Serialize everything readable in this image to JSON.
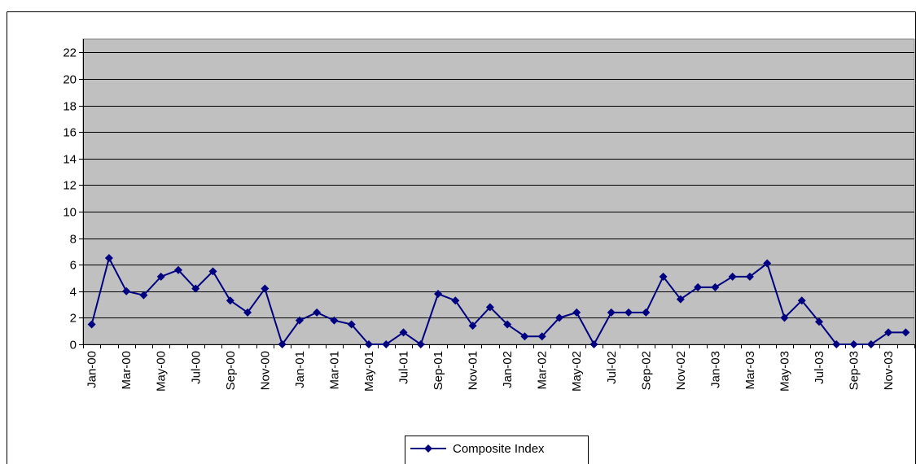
{
  "chart_data": {
    "type": "line",
    "categories": [
      "Jan-00",
      null,
      "Mar-00",
      null,
      "May-00",
      null,
      "Jul-00",
      null,
      "Sep-00",
      null,
      "Nov-00",
      null,
      "Jan-01",
      null,
      "Mar-01",
      null,
      "May-01",
      null,
      "Jul-01",
      null,
      "Sep-01",
      null,
      "Nov-01",
      null,
      "Jan-02",
      null,
      "Mar-02",
      null,
      "May-02",
      null,
      "Jul-02",
      null,
      "Sep-02",
      null,
      "Nov-02",
      null,
      "Jan-03",
      null,
      "Mar-03",
      null,
      "May-03",
      null,
      "Jul-03",
      null,
      "Sep-03",
      null,
      "Nov-03",
      null
    ],
    "series": [
      {
        "name": "Composite Index",
        "color": "#000080",
        "values": [
          1.5,
          6.5,
          4.0,
          3.7,
          5.1,
          5.6,
          4.2,
          5.5,
          3.3,
          2.4,
          4.2,
          0,
          1.8,
          2.4,
          1.8,
          1.5,
          0,
          0,
          0.9,
          0,
          3.8,
          3.3,
          1.4,
          2.8,
          1.5,
          0.6,
          0.6,
          2.0,
          2.4,
          0,
          2.4,
          2.4,
          2.4,
          5.1,
          3.4,
          4.3,
          4.3,
          5.1,
          5.1,
          6.1,
          2.0,
          3.3,
          1.7,
          0,
          0,
          0,
          0.9,
          0.9
        ]
      }
    ],
    "ylim": [
      0,
      23
    ],
    "yticks": [
      0,
      2,
      4,
      6,
      8,
      10,
      12,
      14,
      16,
      18,
      20,
      22
    ],
    "grid": true,
    "plot_background": "#c0c0c0",
    "legend": "bottom"
  }
}
